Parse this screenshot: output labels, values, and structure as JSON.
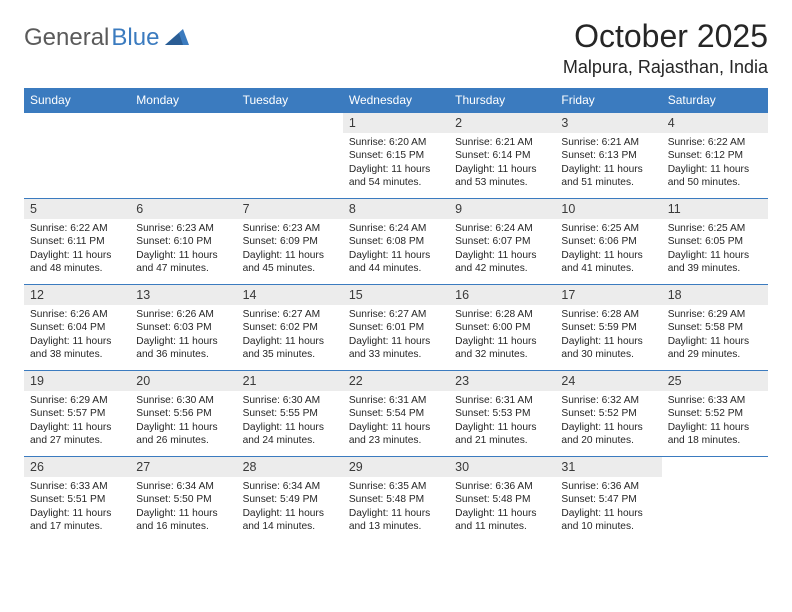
{
  "logo": {
    "text1": "General",
    "text2": "Blue"
  },
  "title": "October 2025",
  "location": "Malpura, Rajasthan, India",
  "colors": {
    "accent": "#3b7bbf",
    "header_bg": "#3b7bbf",
    "daynum_bg": "#ececec",
    "border": "#3b7bbf",
    "text": "#262626",
    "logo_gray": "#5a5a5a"
  },
  "weekday_headers": [
    "Sunday",
    "Monday",
    "Tuesday",
    "Wednesday",
    "Thursday",
    "Friday",
    "Saturday"
  ],
  "weeks": [
    [
      {
        "num": "",
        "sunrise": "",
        "sunset": "",
        "daylight": ""
      },
      {
        "num": "",
        "sunrise": "",
        "sunset": "",
        "daylight": ""
      },
      {
        "num": "",
        "sunrise": "",
        "sunset": "",
        "daylight": ""
      },
      {
        "num": "1",
        "sunrise": "Sunrise: 6:20 AM",
        "sunset": "Sunset: 6:15 PM",
        "daylight": "Daylight: 11 hours and 54 minutes."
      },
      {
        "num": "2",
        "sunrise": "Sunrise: 6:21 AM",
        "sunset": "Sunset: 6:14 PM",
        "daylight": "Daylight: 11 hours and 53 minutes."
      },
      {
        "num": "3",
        "sunrise": "Sunrise: 6:21 AM",
        "sunset": "Sunset: 6:13 PM",
        "daylight": "Daylight: 11 hours and 51 minutes."
      },
      {
        "num": "4",
        "sunrise": "Sunrise: 6:22 AM",
        "sunset": "Sunset: 6:12 PM",
        "daylight": "Daylight: 11 hours and 50 minutes."
      }
    ],
    [
      {
        "num": "5",
        "sunrise": "Sunrise: 6:22 AM",
        "sunset": "Sunset: 6:11 PM",
        "daylight": "Daylight: 11 hours and 48 minutes."
      },
      {
        "num": "6",
        "sunrise": "Sunrise: 6:23 AM",
        "sunset": "Sunset: 6:10 PM",
        "daylight": "Daylight: 11 hours and 47 minutes."
      },
      {
        "num": "7",
        "sunrise": "Sunrise: 6:23 AM",
        "sunset": "Sunset: 6:09 PM",
        "daylight": "Daylight: 11 hours and 45 minutes."
      },
      {
        "num": "8",
        "sunrise": "Sunrise: 6:24 AM",
        "sunset": "Sunset: 6:08 PM",
        "daylight": "Daylight: 11 hours and 44 minutes."
      },
      {
        "num": "9",
        "sunrise": "Sunrise: 6:24 AM",
        "sunset": "Sunset: 6:07 PM",
        "daylight": "Daylight: 11 hours and 42 minutes."
      },
      {
        "num": "10",
        "sunrise": "Sunrise: 6:25 AM",
        "sunset": "Sunset: 6:06 PM",
        "daylight": "Daylight: 11 hours and 41 minutes."
      },
      {
        "num": "11",
        "sunrise": "Sunrise: 6:25 AM",
        "sunset": "Sunset: 6:05 PM",
        "daylight": "Daylight: 11 hours and 39 minutes."
      }
    ],
    [
      {
        "num": "12",
        "sunrise": "Sunrise: 6:26 AM",
        "sunset": "Sunset: 6:04 PM",
        "daylight": "Daylight: 11 hours and 38 minutes."
      },
      {
        "num": "13",
        "sunrise": "Sunrise: 6:26 AM",
        "sunset": "Sunset: 6:03 PM",
        "daylight": "Daylight: 11 hours and 36 minutes."
      },
      {
        "num": "14",
        "sunrise": "Sunrise: 6:27 AM",
        "sunset": "Sunset: 6:02 PM",
        "daylight": "Daylight: 11 hours and 35 minutes."
      },
      {
        "num": "15",
        "sunrise": "Sunrise: 6:27 AM",
        "sunset": "Sunset: 6:01 PM",
        "daylight": "Daylight: 11 hours and 33 minutes."
      },
      {
        "num": "16",
        "sunrise": "Sunrise: 6:28 AM",
        "sunset": "Sunset: 6:00 PM",
        "daylight": "Daylight: 11 hours and 32 minutes."
      },
      {
        "num": "17",
        "sunrise": "Sunrise: 6:28 AM",
        "sunset": "Sunset: 5:59 PM",
        "daylight": "Daylight: 11 hours and 30 minutes."
      },
      {
        "num": "18",
        "sunrise": "Sunrise: 6:29 AM",
        "sunset": "Sunset: 5:58 PM",
        "daylight": "Daylight: 11 hours and 29 minutes."
      }
    ],
    [
      {
        "num": "19",
        "sunrise": "Sunrise: 6:29 AM",
        "sunset": "Sunset: 5:57 PM",
        "daylight": "Daylight: 11 hours and 27 minutes."
      },
      {
        "num": "20",
        "sunrise": "Sunrise: 6:30 AM",
        "sunset": "Sunset: 5:56 PM",
        "daylight": "Daylight: 11 hours and 26 minutes."
      },
      {
        "num": "21",
        "sunrise": "Sunrise: 6:30 AM",
        "sunset": "Sunset: 5:55 PM",
        "daylight": "Daylight: 11 hours and 24 minutes."
      },
      {
        "num": "22",
        "sunrise": "Sunrise: 6:31 AM",
        "sunset": "Sunset: 5:54 PM",
        "daylight": "Daylight: 11 hours and 23 minutes."
      },
      {
        "num": "23",
        "sunrise": "Sunrise: 6:31 AM",
        "sunset": "Sunset: 5:53 PM",
        "daylight": "Daylight: 11 hours and 21 minutes."
      },
      {
        "num": "24",
        "sunrise": "Sunrise: 6:32 AM",
        "sunset": "Sunset: 5:52 PM",
        "daylight": "Daylight: 11 hours and 20 minutes."
      },
      {
        "num": "25",
        "sunrise": "Sunrise: 6:33 AM",
        "sunset": "Sunset: 5:52 PM",
        "daylight": "Daylight: 11 hours and 18 minutes."
      }
    ],
    [
      {
        "num": "26",
        "sunrise": "Sunrise: 6:33 AM",
        "sunset": "Sunset: 5:51 PM",
        "daylight": "Daylight: 11 hours and 17 minutes."
      },
      {
        "num": "27",
        "sunrise": "Sunrise: 6:34 AM",
        "sunset": "Sunset: 5:50 PM",
        "daylight": "Daylight: 11 hours and 16 minutes."
      },
      {
        "num": "28",
        "sunrise": "Sunrise: 6:34 AM",
        "sunset": "Sunset: 5:49 PM",
        "daylight": "Daylight: 11 hours and 14 minutes."
      },
      {
        "num": "29",
        "sunrise": "Sunrise: 6:35 AM",
        "sunset": "Sunset: 5:48 PM",
        "daylight": "Daylight: 11 hours and 13 minutes."
      },
      {
        "num": "30",
        "sunrise": "Sunrise: 6:36 AM",
        "sunset": "Sunset: 5:48 PM",
        "daylight": "Daylight: 11 hours and 11 minutes."
      },
      {
        "num": "31",
        "sunrise": "Sunrise: 6:36 AM",
        "sunset": "Sunset: 5:47 PM",
        "daylight": "Daylight: 11 hours and 10 minutes."
      },
      {
        "num": "",
        "sunrise": "",
        "sunset": "",
        "daylight": ""
      }
    ]
  ]
}
